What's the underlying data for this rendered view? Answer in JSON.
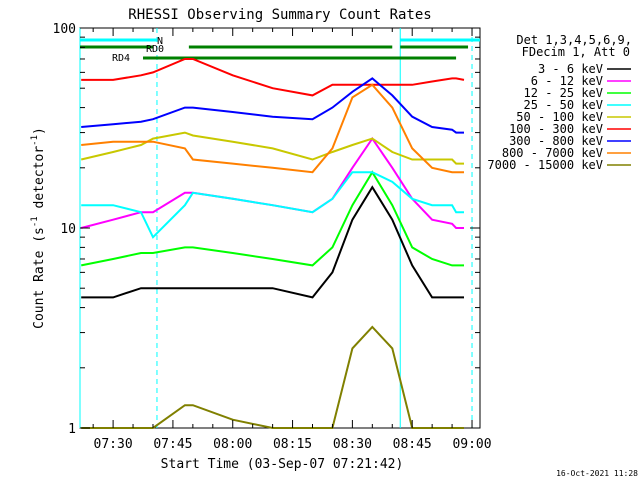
{
  "chart_data": {
    "type": "line",
    "title": "RHESSI Observing Summary Count Rates",
    "xlabel": "Start Time (03-Sep-07 07:21:42)",
    "ylabel": "Count Rate (s⁻¹ detector⁻¹)",
    "ylabel_main": "Count Rate (s",
    "ylabel_sup1": "-1",
    "ylabel_mid": " detector",
    "ylabel_sup2": "-1",
    "ylabel_end": ")",
    "y_scale": "log",
    "ylim": [
      1,
      100
    ],
    "xlim": [
      "07:21:42",
      "09:02:00"
    ],
    "x_ticks": [
      "07:30",
      "07:45",
      "08:00",
      "08:15",
      "08:30",
      "08:45",
      "09:00"
    ],
    "y_ticks": [
      "1",
      "10",
      "100"
    ],
    "grid": false,
    "legend_position": "top-right",
    "legend_header": [
      "Det 1,3,4,5,6,9,",
      "FDecim 1, Att 0"
    ],
    "timestamp": "16-Oct-2021 11:28",
    "flags": [
      {
        "name": "N",
        "color": "#00ffff",
        "intervals": [
          [
            "07:21:42",
            "07:41:00"
          ],
          [
            "08:42:00",
            "09:02:00"
          ]
        ]
      },
      {
        "name": "RD0",
        "color": "#008000",
        "intervals": [
          [
            "07:21:42",
            "07:40:00"
          ],
          [
            "07:49:00",
            "08:40:00"
          ],
          [
            "08:42:00",
            "08:59:00"
          ]
        ]
      },
      {
        "name": "RD4",
        "color": "#008000",
        "intervals": [
          [
            "07:37:30",
            "08:56:00"
          ]
        ]
      }
    ],
    "vertical_lines": [
      {
        "time": "07:21:42",
        "color": "#00ffff",
        "style": "solid"
      },
      {
        "time": "07:41:00",
        "color": "#00ffff",
        "style": "dashed"
      },
      {
        "time": "08:42:00",
        "color": "#00ffff",
        "style": "solid"
      },
      {
        "time": "09:00:00",
        "color": "#00ffff",
        "style": "dashed"
      }
    ],
    "x": [
      "07:22",
      "07:30",
      "07:37",
      "07:40",
      "07:48",
      "07:50",
      "08:00",
      "08:10",
      "08:20",
      "08:25",
      "08:30",
      "08:35",
      "08:40",
      "08:45",
      "08:50",
      "08:55",
      "08:56",
      "08:58"
    ],
    "series": [
      {
        "name": "3 - 6 keV",
        "color": "#000000",
        "values": [
          4.5,
          4.5,
          5,
          5,
          5,
          5,
          5,
          5,
          4.5,
          6,
          11,
          16,
          11,
          6.5,
          4.5,
          4.5,
          4.5,
          4.5
        ]
      },
      {
        "name": "6 - 12 keV",
        "color": "#ff00ff",
        "values": [
          10,
          11,
          12,
          12,
          15,
          15,
          14,
          13,
          12,
          14,
          20,
          28,
          20,
          14,
          11,
          10.5,
          10,
          10
        ]
      },
      {
        "name": "12 - 25 keV",
        "color": "#00ff00",
        "values": [
          6.5,
          7,
          7.5,
          7.5,
          8,
          8,
          7.5,
          7,
          6.5,
          8,
          13,
          19,
          13,
          8,
          7,
          6.5,
          6.5,
          6.5
        ]
      },
      {
        "name": "25 - 50 keV",
        "color": "#00ffff",
        "values": [
          13,
          13,
          12,
          9,
          13,
          15,
          14,
          13,
          12,
          14,
          19,
          19,
          17,
          14,
          13,
          13,
          12,
          12
        ]
      },
      {
        "name": "50 - 100 keV",
        "color": "#c8c800",
        "values": [
          22,
          24,
          26,
          28,
          30,
          29,
          27,
          25,
          22,
          24,
          26,
          28,
          24,
          22,
          22,
          22,
          21,
          21
        ]
      },
      {
        "name": "100 - 300 keV",
        "color": "#ff0000",
        "values": [
          55,
          55,
          58,
          60,
          70,
          70,
          58,
          50,
          46,
          52,
          52,
          52,
          52,
          52,
          54,
          56,
          56,
          55
        ]
      },
      {
        "name": "300 - 800 keV",
        "color": "#0000ff",
        "values": [
          32,
          33,
          34,
          35,
          40,
          40,
          38,
          36,
          35,
          40,
          48,
          56,
          46,
          36,
          32,
          31,
          30,
          30
        ]
      },
      {
        "name": "800 - 7000 keV",
        "color": "#ff8000",
        "values": [
          26,
          27,
          27,
          27,
          25,
          22,
          21,
          20,
          19,
          25,
          45,
          52,
          40,
          25,
          20,
          19,
          19,
          19
        ]
      },
      {
        "name": "7000 - 15000 keV",
        "color": "#808000",
        "values": [
          1,
          1,
          1,
          1,
          1.3,
          1.3,
          1.1,
          1,
          1,
          1,
          2.5,
          3.2,
          2.5,
          1,
          1,
          1,
          1,
          1
        ]
      }
    ]
  }
}
